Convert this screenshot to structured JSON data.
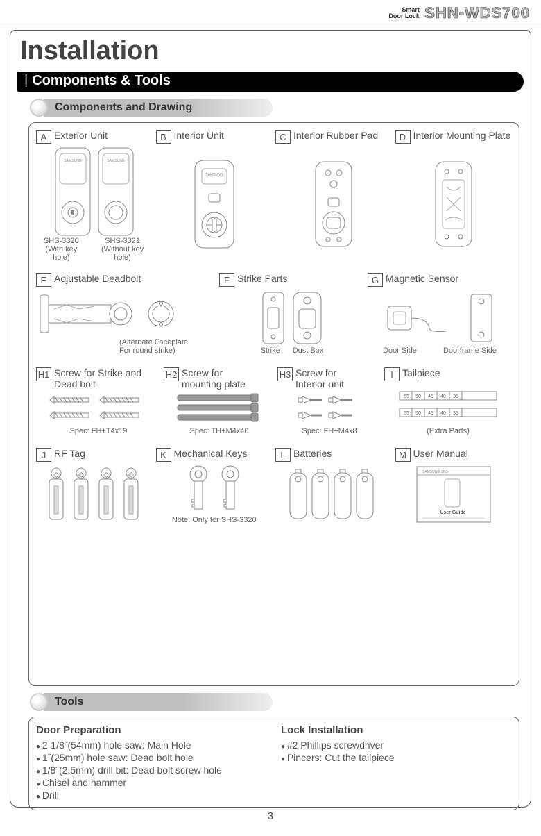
{
  "header": {
    "tagline1": "Smart",
    "tagline2": "Door Lock",
    "model": "SHN-WDS700"
  },
  "page_title": "Installation",
  "section_bar": "Components & Tools",
  "subsection1": "Components and Drawing",
  "subsection2": "Tools",
  "components": {
    "a": {
      "code": "A",
      "label": "Exterior Unit",
      "sub_left_1": "SHS-3320",
      "sub_left_2": "(With key hole)",
      "sub_right_1": "SHS-3321",
      "sub_right_2": "(Without key hole)"
    },
    "b": {
      "code": "B",
      "label": "Interior Unit"
    },
    "c": {
      "code": "C",
      "label": "Interior Rubber Pad"
    },
    "d": {
      "code": "D",
      "label": "Interior Mounting Plate"
    },
    "e": {
      "code": "E",
      "label": "Adjustable Deadbolt",
      "note1": "(Alternate Faceplate",
      "note2": "For round strike)"
    },
    "f": {
      "code": "F",
      "label": "Strike Parts",
      "sub_left": "Strike",
      "sub_right": "Dust Box"
    },
    "g": {
      "code": "G",
      "label": "Magnetic Sensor",
      "sub_left": "Door Side",
      "sub_right": "Doorframe Side"
    },
    "h1": {
      "code": "H1",
      "label1": "Screw for Strike and",
      "label2": "Dead bolt",
      "spec": "Spec: FH+T4x19"
    },
    "h2": {
      "code": "H2",
      "label1": "Screw for",
      "label2": "mounting plate",
      "spec": "Spec: TH+M4x40"
    },
    "h3": {
      "code": "H3",
      "label1": "Screw for",
      "label2": "Interior unit",
      "spec": "Spec: FH+M4x8"
    },
    "i": {
      "code": "I",
      "label": "Tailpiece",
      "note": "(Extra Parts)"
    },
    "j": {
      "code": "J",
      "label": "RF Tag"
    },
    "k": {
      "code": "K",
      "label": "Mechanical Keys",
      "note": "Note: Only for SHS-3320"
    },
    "l": {
      "code": "L",
      "label": "Batteries"
    },
    "m": {
      "code": "M",
      "label": "User Manual",
      "caption": "User Guide"
    }
  },
  "tools": {
    "prep_title": "Door Preparation",
    "prep_items": [
      "2-1/8˝(54mm) hole saw: Main Hole",
      "1˝(25mm) hole saw: Dead bolt hole",
      "1/8˝(2.5mm) drill bit: Dead bolt screw hole",
      "Chisel and hammer",
      "Drill"
    ],
    "install_title": "Lock Installation",
    "install_items": [
      "#2 Phillips screwdriver",
      "Pincers: Cut the tailpiece"
    ]
  },
  "page_number": "3"
}
